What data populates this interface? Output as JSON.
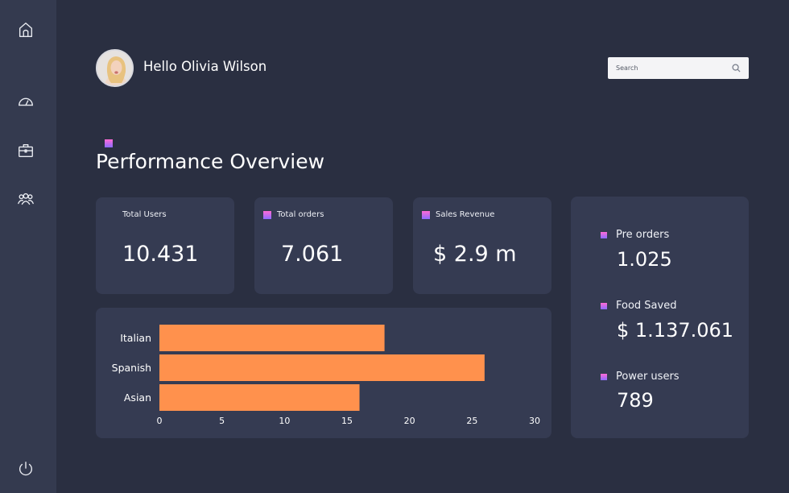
{
  "user": {
    "greeting": "Hello Olivia Wilson"
  },
  "search": {
    "placeholder": "Search"
  },
  "sidebar": {
    "icons": [
      "home-icon",
      "dashboard-icon",
      "briefcase-icon",
      "users-icon",
      "power-icon"
    ]
  },
  "page": {
    "title": "Performance Overview"
  },
  "stats": [
    {
      "label": "Total Users",
      "value": "10.431"
    },
    {
      "label": "Total orders",
      "value": "7.061"
    },
    {
      "label": "Sales Revenue",
      "value": "$ 2.9 m"
    }
  ],
  "side_stats": [
    {
      "label": "Pre orders",
      "value": "1.025"
    },
    {
      "label": "Food Saved",
      "value": "$ 1.137.061"
    },
    {
      "label": "Power users",
      "value": "789"
    }
  ],
  "colors": {
    "background": "#2a2f41",
    "sidebar": "#343a4f",
    "card": "#353b52",
    "bar": "#ff914d",
    "marker_top": "#ff6ad5",
    "marker_bottom": "#8c6bff"
  },
  "chart_data": {
    "type": "bar",
    "orientation": "horizontal",
    "categories": [
      "Italian",
      "Spanish",
      "Asian"
    ],
    "values": [
      18,
      26,
      16
    ],
    "xlim": [
      0,
      30
    ],
    "xticks": [
      0,
      5,
      10,
      15,
      20,
      25,
      30
    ],
    "grid": false,
    "title": "",
    "xlabel": "",
    "ylabel": ""
  }
}
